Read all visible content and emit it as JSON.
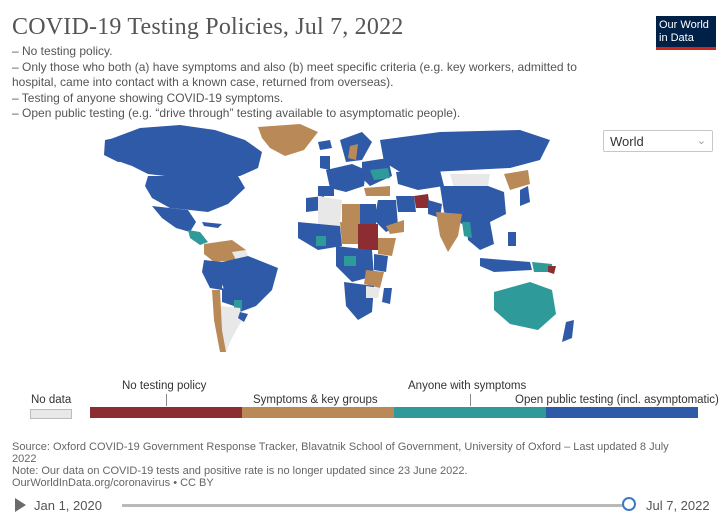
{
  "header": {
    "title": "COVID-19 Testing Policies, Jul 7, 2022",
    "subtitle_lines": [
      "– No testing policy.",
      "– Only those who both (a) have symptoms and also (b) meet specific criteria (e.g. key workers, admitted to",
      "hospital, came into contact with a known case, returned from overseas).",
      "– Testing of anyone showing COVID-19 symptoms.",
      "– Open public testing (e.g. “drive through” testing available to asymptomatic people)."
    ],
    "logo_line1": "Our World",
    "logo_line2": "in Data"
  },
  "controls": {
    "region": "World",
    "timeline_start": "Jan 1, 2020",
    "timeline_end": "Jul 7, 2022",
    "timeline_position": 1.0
  },
  "colors": {
    "no_data": "#e8e8e8",
    "no_testing": "#8c2d32",
    "symptoms_key_groups": "#b98a57",
    "anyone_symptoms": "#2f9a9a",
    "open_public": "#2f5aa8",
    "ocean": "#ffffff"
  },
  "legend": {
    "no_data": "No data",
    "categories": [
      {
        "label": "No testing policy",
        "color": "#8c2d32"
      },
      {
        "label": "Symptoms & key groups",
        "color": "#b98a57"
      },
      {
        "label": "Anyone with symptoms",
        "color": "#2f9a9a"
      },
      {
        "label": "Open public testing (incl. asymptomatic)",
        "color": "#2f5aa8"
      }
    ]
  },
  "sources": {
    "source_line1": "Source: Oxford COVID-19 Government Response Tracker, Blavatnik School of Government, University of Oxford – Last updated 8 July",
    "source_line2": "2022",
    "note": "Note: Our data on COVID-19 tests and positive rate is no longer updated since 23 June 2022.",
    "url": "OurWorldInData.org/coronavirus • CC BY"
  }
}
